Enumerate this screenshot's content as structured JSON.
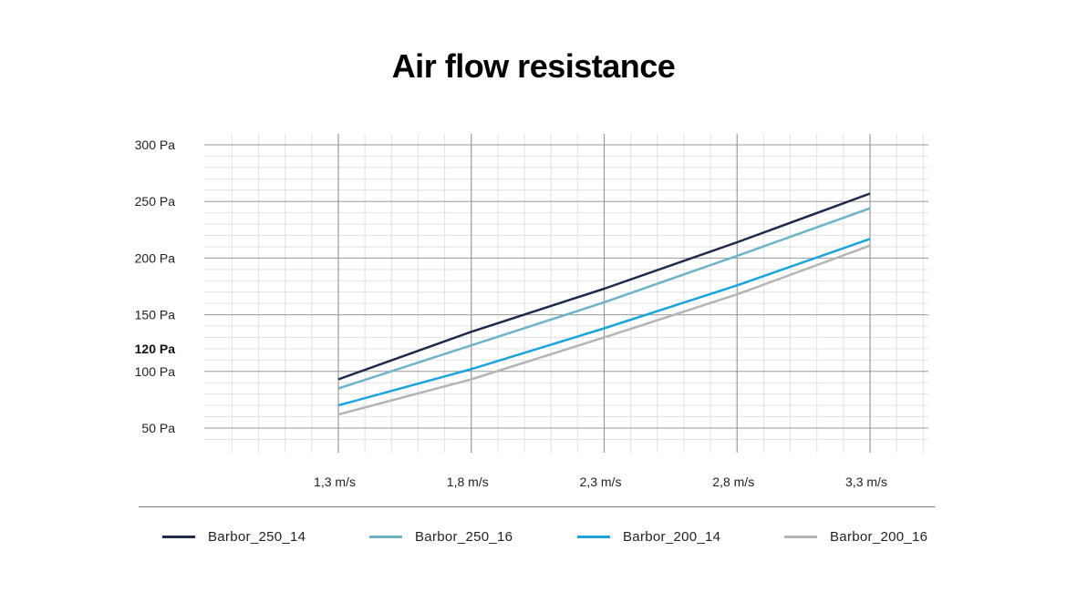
{
  "chart_data": {
    "type": "line",
    "title": "Air flow resistance",
    "x": [
      1.3,
      1.8,
      2.3,
      2.8,
      3.3
    ],
    "x_tick_labels": [
      "1,3 m/s",
      "1,8 m/s",
      "2,3 m/s",
      "2,8 m/s",
      "3,3 m/s"
    ],
    "y_ticks": [
      50,
      100,
      150,
      200,
      250,
      300
    ],
    "y_tick_labels": [
      "50 Pa",
      "100 Pa",
      "150 Pa",
      "200 Pa",
      "250 Pa",
      "300 Pa"
    ],
    "y_highlight": {
      "value": 120,
      "label": "120 Pa"
    },
    "ylim": [
      40,
      310
    ],
    "grid": true,
    "legend_position": "bottom",
    "series": [
      {
        "name": "Barbor_250_14",
        "color": "#1e2a4a",
        "values": [
          93,
          135,
          173,
          214,
          257
        ]
      },
      {
        "name": "Barbor_250_16",
        "color": "#6fb3c7",
        "values": [
          85,
          123,
          161,
          202,
          244
        ]
      },
      {
        "name": "Barbor_200_14",
        "color": "#1ba3de",
        "values": [
          70,
          102,
          138,
          176,
          217
        ]
      },
      {
        "name": "Barbor_200_16",
        "color": "#b5b5b5",
        "values": [
          62,
          93,
          130,
          168,
          211
        ]
      }
    ]
  }
}
